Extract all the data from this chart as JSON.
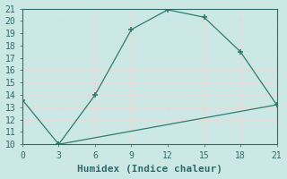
{
  "xlabel": "Humidex (Indice chaleur)",
  "line1_x": [
    0,
    3,
    6,
    9,
    12,
    15,
    18,
    21
  ],
  "line1_y": [
    13.6,
    10.0,
    14.0,
    19.3,
    20.9,
    20.3,
    17.5,
    13.2
  ],
  "line2_x": [
    3,
    21
  ],
  "line2_y": [
    10.0,
    13.2
  ],
  "line_color": "#2e7d6e",
  "marker": "+",
  "marker_size": 4,
  "marker_lw": 1.2,
  "line_width": 0.9,
  "xlim": [
    0,
    21
  ],
  "ylim": [
    10,
    21
  ],
  "xticks": [
    0,
    3,
    6,
    9,
    12,
    15,
    18,
    21
  ],
  "yticks": [
    10,
    11,
    12,
    13,
    14,
    15,
    16,
    17,
    18,
    19,
    20,
    21
  ],
  "bg_color": "#cce8e4",
  "grid_color": "#e8d8d8",
  "font_color": "#2e6b6b",
  "font_family": "monospace",
  "font_size": 7,
  "xlabel_fontsize": 8
}
